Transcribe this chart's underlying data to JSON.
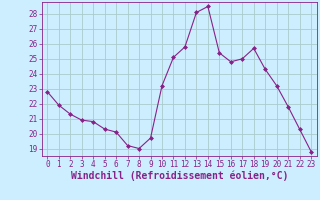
{
  "x": [
    0,
    1,
    2,
    3,
    4,
    5,
    6,
    7,
    8,
    9,
    10,
    11,
    12,
    13,
    14,
    15,
    16,
    17,
    18,
    19,
    20,
    21,
    22,
    23
  ],
  "y": [
    22.8,
    21.9,
    21.3,
    20.9,
    20.8,
    20.3,
    20.1,
    19.2,
    19.0,
    19.7,
    23.2,
    25.1,
    25.8,
    28.1,
    28.5,
    25.4,
    24.8,
    25.0,
    25.7,
    24.3,
    23.2,
    21.8,
    20.3,
    18.8
  ],
  "line_color": "#882288",
  "marker": "D",
  "marker_size": 2.0,
  "bg_color": "#cceeff",
  "grid_color": "#aacccc",
  "xlabel": "Windchill (Refroidissement éolien,°C)",
  "xlim": [
    -0.5,
    23.5
  ],
  "ylim": [
    18.5,
    28.8
  ],
  "yticks": [
    19,
    20,
    21,
    22,
    23,
    24,
    25,
    26,
    27,
    28
  ],
  "xticks": [
    0,
    1,
    2,
    3,
    4,
    5,
    6,
    7,
    8,
    9,
    10,
    11,
    12,
    13,
    14,
    15,
    16,
    17,
    18,
    19,
    20,
    21,
    22,
    23
  ],
  "tick_label_size": 5.5,
  "xlabel_size": 7.0,
  "label_color": "#882288"
}
